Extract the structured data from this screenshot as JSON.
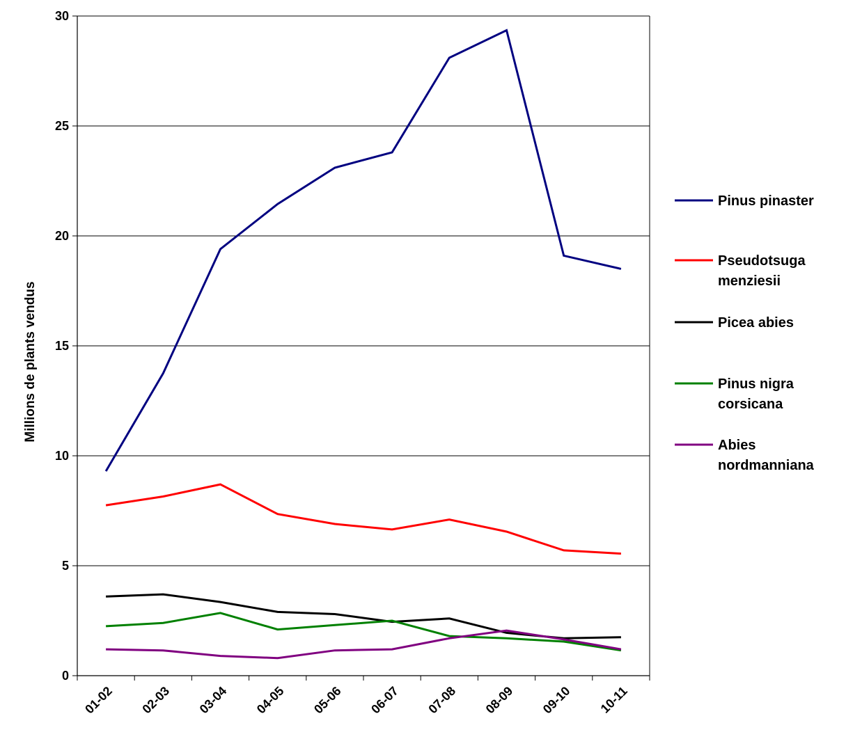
{
  "chart_data": {
    "type": "line",
    "title": "",
    "xlabel": "",
    "ylabel": "Millions de plants vendus",
    "ylim": [
      0,
      30
    ],
    "yticks": [
      "0",
      "5",
      "10",
      "15",
      "20",
      "25",
      "30"
    ],
    "categories": [
      "01-02",
      "02-03",
      "03-04",
      "04-05",
      "05-06",
      "06-07",
      "07-08",
      "08-09",
      "09-10",
      "10-11"
    ],
    "grid": "horizontal",
    "legend_position": "right",
    "series": [
      {
        "name": "Pinus pinaster",
        "legend_lines": [
          "Pinus pinaster"
        ],
        "color": "#000080",
        "values": [
          9.3,
          13.75,
          19.4,
          21.45,
          23.1,
          23.8,
          28.1,
          29.35,
          19.1,
          18.5
        ]
      },
      {
        "name": "Pseudotsuga menziesii",
        "legend_lines": [
          "Pseudotsuga",
          "menziesii"
        ],
        "color": "#ff0000",
        "values": [
          7.75,
          8.15,
          8.7,
          7.35,
          6.9,
          6.65,
          7.1,
          6.55,
          5.7,
          5.55
        ]
      },
      {
        "name": "Picea abies",
        "legend_lines": [
          "Picea abies"
        ],
        "color": "#000000",
        "values": [
          3.6,
          3.7,
          3.35,
          2.9,
          2.8,
          2.45,
          2.6,
          1.95,
          1.7,
          1.75
        ]
      },
      {
        "name": "Pinus nigra corsicana",
        "legend_lines": [
          "Pinus nigra",
          "corsicana"
        ],
        "color": "#008000",
        "values": [
          2.25,
          2.4,
          2.85,
          2.1,
          2.3,
          2.5,
          1.8,
          1.7,
          1.55,
          1.15
        ]
      },
      {
        "name": "Abies nordmanniana",
        "legend_lines": [
          "Abies",
          "nordmanniana"
        ],
        "color": "#800080",
        "values": [
          1.2,
          1.15,
          0.9,
          0.8,
          1.15,
          1.2,
          1.7,
          2.05,
          1.65,
          1.2
        ]
      }
    ]
  }
}
